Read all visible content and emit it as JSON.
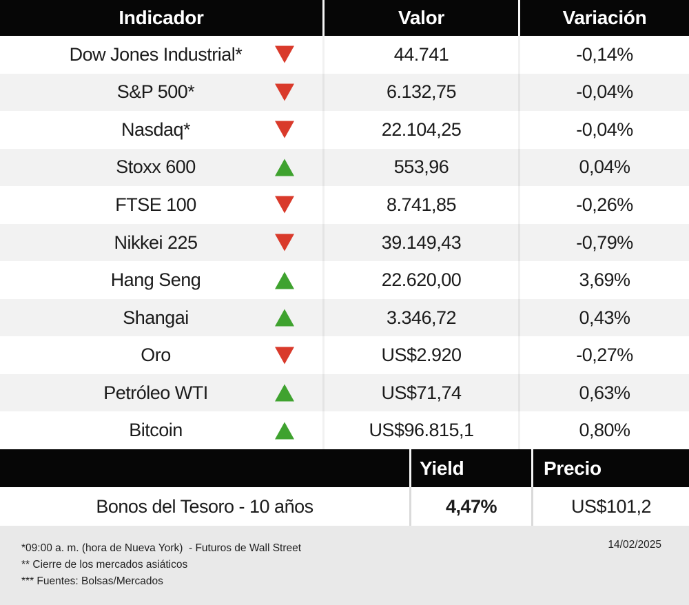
{
  "colors": {
    "header_bg": "#060606",
    "row_alt_bg": "#f2f2f2",
    "footer_bg": "#e9e9e9",
    "up_green": "#3fa22f",
    "down_red": "#d93a2b",
    "text": "#1b1b1b"
  },
  "main_table": {
    "headers": [
      "Indicador",
      "Valor",
      "Variación"
    ],
    "rows": [
      {
        "indicador": "Dow Jones Industrial*",
        "direction": "down",
        "valor": "44.741",
        "variacion": "-0,14%"
      },
      {
        "indicador": "S&P 500*",
        "direction": "down",
        "valor": "6.132,75",
        "variacion": "-0,04%"
      },
      {
        "indicador": "Nasdaq*",
        "direction": "down",
        "valor": "22.104,25",
        "variacion": "-0,04%"
      },
      {
        "indicador": "Stoxx 600",
        "direction": "up",
        "valor": "553,96",
        "variacion": "0,04%"
      },
      {
        "indicador": "FTSE 100",
        "direction": "down",
        "valor": "8.741,85",
        "variacion": "-0,26%"
      },
      {
        "indicador": "Nikkei 225",
        "direction": "down",
        "valor": "39.149,43",
        "variacion": "-0,79%"
      },
      {
        "indicador": "Hang Seng",
        "direction": "up",
        "valor": "22.620,00",
        "variacion": "3,69%"
      },
      {
        "indicador": "Shangai",
        "direction": "up",
        "valor": "3.346,72",
        "variacion": "0,43%"
      },
      {
        "indicador": "Oro",
        "direction": "down",
        "valor": "US$2.920",
        "variacion": "-0,27%"
      },
      {
        "indicador": "Petróleo WTI",
        "direction": "up",
        "valor": "US$71,74",
        "variacion": "0,63%"
      },
      {
        "indicador": "Bitcoin",
        "direction": "up",
        "valor": "US$96.815,1",
        "variacion": "0,80%"
      }
    ]
  },
  "bond_table": {
    "headers": [
      "Yield",
      "Precio"
    ],
    "row": {
      "label": "Bonos del Tesoro - 10 años",
      "yield": "4,47%",
      "precio": "US$101,2"
    }
  },
  "footer": {
    "notes": [
      "*09:00 a. m. (hora de Nueva York)  - Futuros de Wall Street",
      "** Cierre de los mercados asiáticos",
      "*** Fuentes: Bolsas/Mercados"
    ],
    "date": "14/02/2025"
  },
  "chart_data": [
    {
      "type": "table",
      "title": "",
      "columns": [
        "Indicador",
        "Dirección",
        "Valor",
        "Variación"
      ],
      "rows": [
        [
          "Dow Jones Industrial*",
          "down",
          "44.741",
          "-0,14%"
        ],
        [
          "S&P 500*",
          "down",
          "6.132,75",
          "-0,04%"
        ],
        [
          "Nasdaq*",
          "down",
          "22.104,25",
          "-0,04%"
        ],
        [
          "Stoxx 600",
          "up",
          "553,96",
          "0,04%"
        ],
        [
          "FTSE 100",
          "down",
          "8.741,85",
          "-0,26%"
        ],
        [
          "Nikkei 225",
          "down",
          "39.149,43",
          "-0,79%"
        ],
        [
          "Hang Seng",
          "up",
          "22.620,00",
          "3,69%"
        ],
        [
          "Shangai",
          "up",
          "3.346,72",
          "0,43%"
        ],
        [
          "Oro",
          "down",
          "US$2.920",
          "-0,27%"
        ],
        [
          "Petróleo WTI",
          "up",
          "US$71,74",
          "0,63%"
        ],
        [
          "Bitcoin",
          "up",
          "US$96.815,1",
          "0,80%"
        ]
      ]
    },
    {
      "type": "table",
      "title": "",
      "columns": [
        "",
        "Yield",
        "Precio"
      ],
      "rows": [
        [
          "Bonos del Tesoro - 10 años",
          "4,47%",
          "US$101,2"
        ]
      ]
    }
  ]
}
